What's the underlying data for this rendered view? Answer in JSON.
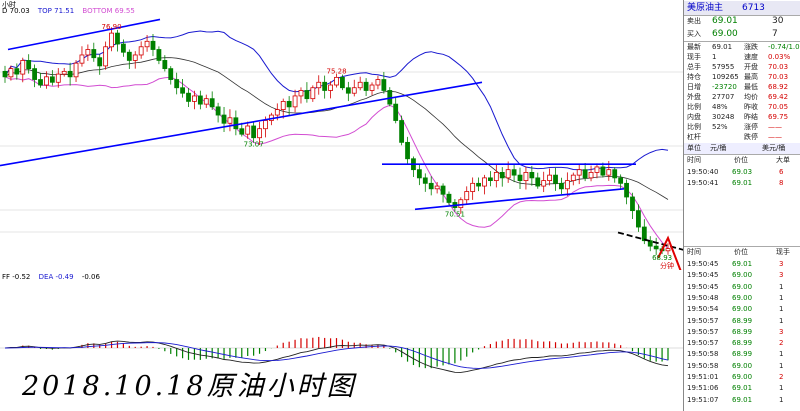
{
  "colors": {
    "up": "#d40000",
    "down": "#008000",
    "boll": "#1a1ad0",
    "ma": "#d24dd2",
    "trend": "#0000ff",
    "quote_label": "#0000c8"
  },
  "header": {
    "ma_label": "D 70.03",
    "top_label": "TOP 71.51",
    "bottom_label": "BOTTOM 69.55",
    "timeframe": "小时"
  },
  "macd_header": {
    "diff_label": "FF -0.52",
    "dea_label": "DEA -0.49",
    "macd_label": "-0.06"
  },
  "price_labels": [
    {
      "text": "76.90"
    },
    {
      "text": "75.28"
    },
    {
      "text": "73.07"
    },
    {
      "text": "70.51"
    },
    {
      "text": "68.93"
    }
  ],
  "annotation": {
    "arrow_text": "分钟"
  },
  "caption": "2018.10.18原油小时图",
  "chart_data": {
    "type": "candlestick",
    "title": "美原油主 6713",
    "timeframe": "1 hour",
    "markers": [
      {
        "label": "76.90"
      },
      {
        "label": "75.28"
      },
      {
        "label": "73.07"
      },
      {
        "label": "70.51"
      },
      {
        "label": "68.93"
      }
    ],
    "closes": [
      75.3,
      75.6,
      75.4,
      75.9,
      75.6,
      75.2,
      75.0,
      75.3,
      75.1,
      75.4,
      75.5,
      75.3,
      75.8,
      76.1,
      76.3,
      76.0,
      75.7,
      76.4,
      76.9,
      76.5,
      76.2,
      75.9,
      76.1,
      76.4,
      76.6,
      76.3,
      75.9,
      75.6,
      75.2,
      74.9,
      74.7,
      74.4,
      74.6,
      74.3,
      74.5,
      74.2,
      73.9,
      73.6,
      73.8,
      73.4,
      73.2,
      73.5,
      73.07,
      73.4,
      73.7,
      73.9,
      74.1,
      74.4,
      74.2,
      74.6,
      74.8,
      74.5,
      74.9,
      75.1,
      74.8,
      75.0,
      75.28,
      74.9,
      74.7,
      74.9,
      75.1,
      74.8,
      75.0,
      75.2,
      74.8,
      74.3,
      73.7,
      72.9,
      72.3,
      71.9,
      71.6,
      71.4,
      71.2,
      71.3,
      71.0,
      70.7,
      70.51,
      70.8,
      71.1,
      71.4,
      71.3,
      71.6,
      71.5,
      71.8,
      71.6,
      71.9,
      71.7,
      71.5,
      71.8,
      71.6,
      71.3,
      71.5,
      71.7,
      71.4,
      71.2,
      71.5,
      71.7,
      71.9,
      71.6,
      71.8,
      72.0,
      71.7,
      71.9,
      71.6,
      71.4,
      70.9,
      70.4,
      69.8,
      69.3,
      69.1,
      69.0,
      68.93,
      69.01
    ],
    "bollinger": {
      "top": 71.51,
      "mid": 70.03,
      "bottom": 69.55
    },
    "trendlines": [
      "rising support",
      "horizontal channel top",
      "channel bottom",
      "short-term falling resistance"
    ],
    "macd": {
      "diff": -0.52,
      "dea": -0.49,
      "macd": -0.06
    }
  },
  "panel": {
    "title": "美原油主",
    "code": "6713",
    "sell_label": "卖出",
    "sell_price": "69.01",
    "sell_vol": "30",
    "buy_label": "买入",
    "buy_price": "69.00",
    "buy_vol": "7",
    "stats": [
      {
        "k1": "最新",
        "v1": "69.01",
        "k2": "涨跌",
        "v2": "-0.74/1.06%"
      },
      {
        "k1": "现手",
        "v1": "1",
        "k2": "速度",
        "v2": "0.03%"
      },
      {
        "k1": "总手",
        "v1": "57955",
        "k2": "开盘",
        "v2": "70.03"
      },
      {
        "k1": "持仓",
        "v1": "109265",
        "k2": "最高",
        "v2": "70.03"
      },
      {
        "k1": "日增",
        "v1": "-23720",
        "k2": "最低",
        "v2": "68.92"
      },
      {
        "k1": "外盘",
        "v1": "27707",
        "k2": "均价",
        "v2": "69.42"
      },
      {
        "k1": "比例",
        "v1": "48%",
        "k2": "昨收",
        "v2": "70.05"
      },
      {
        "k1": "内盘",
        "v1": "30248",
        "k2": "昨结",
        "v2": "69.75"
      },
      {
        "k1": "比例",
        "v1": "52%",
        "k2": "涨停",
        "v2": "——"
      },
      {
        "k1": "杠杆",
        "v1": "",
        "k2": "跌停",
        "v2": "——"
      }
    ],
    "unit_label": "单位",
    "unit1": "元/桶",
    "unit2": "美元/桶",
    "trades1_head": [
      "时间",
      "价位",
      "大单"
    ],
    "trades1": [
      {
        "t": "19:50:40",
        "p": "69.03",
        "v": "6"
      },
      {
        "t": "19:50:41",
        "p": "69.01",
        "v": "8"
      }
    ],
    "trades2_head": [
      "时间",
      "价位",
      "现手"
    ],
    "trades2": [
      {
        "t": "19:50:45",
        "p": "69.01",
        "v": "3"
      },
      {
        "t": "19:50:45",
        "p": "69.00",
        "v": "3"
      },
      {
        "t": "19:50:45",
        "p": "69.00",
        "v": "1"
      },
      {
        "t": "19:50:48",
        "p": "69.00",
        "v": "1"
      },
      {
        "t": "19:50:54",
        "p": "69.00",
        "v": "1"
      },
      {
        "t": "19:50:57",
        "p": "68.99",
        "v": "1"
      },
      {
        "t": "19:50:57",
        "p": "68.99",
        "v": "3"
      },
      {
        "t": "19:50:57",
        "p": "68.99",
        "v": "2"
      },
      {
        "t": "19:50:58",
        "p": "68.99",
        "v": "1"
      },
      {
        "t": "19:50:58",
        "p": "69.00",
        "v": "1"
      },
      {
        "t": "19:51:01",
        "p": "69.00",
        "v": "2"
      },
      {
        "t": "19:51:06",
        "p": "69.01",
        "v": "1"
      },
      {
        "t": "19:51:07",
        "p": "69.01",
        "v": "1"
      }
    ]
  }
}
